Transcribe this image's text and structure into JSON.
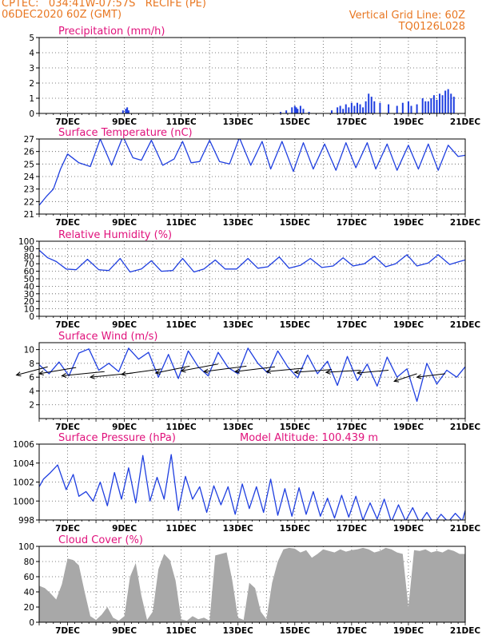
{
  "header": {
    "line1": "CPTEC:   034:41W-07:57S   RECIFE (PE)",
    "line2": "06DEC2020 60Z (GMT)",
    "right1": "Vertical Grid Line: 60Z",
    "right2": "TQ0126L028"
  },
  "colors": {
    "header": "#e87722",
    "title": "#e0127c",
    "series": "#1f3fe0",
    "wind_arrow": "#000000",
    "cloud": "#a8a8a8"
  },
  "x_axis": {
    "domain": [
      0,
      15
    ],
    "labels": [
      "7DEC",
      "9DEC",
      "11DEC",
      "13DEC",
      "15DEC",
      "17DEC",
      "19DEC",
      "21DEC"
    ],
    "label_positions": [
      1,
      3,
      5,
      7,
      9,
      11,
      13,
      15
    ]
  },
  "chart_data": [
    {
      "id": "precip",
      "type": "bar",
      "title": "Precipitation (mm/h)",
      "ylim": [
        0,
        5
      ],
      "yticks": [
        0,
        1,
        2,
        3,
        4,
        5
      ],
      "x": [
        2.95,
        3.05,
        3.1,
        3.15,
        8.5,
        8.7,
        8.9,
        9.0,
        9.05,
        9.1,
        9.2,
        9.3,
        9.5,
        10.3,
        10.5,
        10.6,
        10.7,
        10.8,
        10.9,
        11.0,
        11.1,
        11.2,
        11.3,
        11.4,
        11.5,
        11.6,
        11.7,
        11.8,
        12.0,
        12.3,
        12.6,
        12.8,
        13.0,
        13.1,
        13.3,
        13.5,
        13.6,
        13.7,
        13.8,
        13.9,
        14.0,
        14.1,
        14.2,
        14.3,
        14.4,
        14.5,
        14.6
      ],
      "values": [
        0.2,
        0.3,
        0.4,
        0.2,
        0.1,
        0.2,
        0.4,
        0.5,
        0.4,
        0.3,
        0.5,
        0.3,
        0.1,
        0.2,
        0.4,
        0.5,
        0.3,
        0.6,
        0.4,
        0.7,
        0.5,
        0.7,
        0.6,
        0.4,
        0.8,
        1.3,
        1.1,
        0.8,
        0.7,
        0.6,
        0.5,
        0.7,
        0.8,
        0.5,
        0.6,
        1.0,
        0.8,
        0.8,
        1.0,
        1.2,
        0.9,
        1.3,
        1.2,
        1.5,
        1.6,
        1.3,
        1.1
      ]
    },
    {
      "id": "temp",
      "type": "line",
      "title": "Surface Temperature (nC)",
      "ylim": [
        21,
        27
      ],
      "yticks": [
        21,
        22,
        23,
        24,
        25,
        26,
        27
      ],
      "x": [
        0,
        0.25,
        0.5,
        0.75,
        1.0,
        1.4,
        1.8,
        2.15,
        2.55,
        2.95,
        3.3,
        3.6,
        3.95,
        4.35,
        4.75,
        5.05,
        5.35,
        5.65,
        6.0,
        6.35,
        6.7,
        7.05,
        7.45,
        7.85,
        8.15,
        8.55,
        8.95,
        9.3,
        9.65,
        10.05,
        10.45,
        10.8,
        11.15,
        11.55,
        11.85,
        12.25,
        12.6,
        13.0,
        13.35,
        13.7,
        14.05,
        14.4,
        14.75,
        15.0
      ],
      "values": [
        21.7,
        22.4,
        23.0,
        24.6,
        25.8,
        25.1,
        24.8,
        27.0,
        24.9,
        27.2,
        25.5,
        25.3,
        26.9,
        24.9,
        25.4,
        26.8,
        25.1,
        25.2,
        26.9,
        25.2,
        25.0,
        27.1,
        24.9,
        26.8,
        24.6,
        26.8,
        24.4,
        26.7,
        24.6,
        26.6,
        24.5,
        26.7,
        24.7,
        26.7,
        24.6,
        26.6,
        24.5,
        26.5,
        24.6,
        26.6,
        24.5,
        26.5,
        25.6,
        25.7
      ]
    },
    {
      "id": "rh",
      "type": "line",
      "title": "Relative Humidity (%)",
      "ylim": [
        0,
        100
      ],
      "yticks": [
        0,
        10,
        20,
        30,
        40,
        50,
        60,
        70,
        80,
        90,
        100
      ],
      "x": [
        0,
        0.3,
        0.6,
        0.95,
        1.3,
        1.7,
        2.1,
        2.45,
        2.85,
        3.2,
        3.6,
        3.95,
        4.3,
        4.7,
        5.05,
        5.45,
        5.8,
        6.2,
        6.55,
        6.95,
        7.35,
        7.7,
        8.05,
        8.45,
        8.8,
        9.2,
        9.55,
        9.95,
        10.35,
        10.7,
        11.05,
        11.45,
        11.8,
        12.2,
        12.55,
        12.95,
        13.3,
        13.7,
        14.05,
        14.45,
        14.8,
        15.0
      ],
      "values": [
        88,
        78,
        73,
        63,
        62,
        76,
        62,
        61,
        77,
        59,
        63,
        74,
        60,
        61,
        77,
        59,
        63,
        75,
        63,
        63,
        77,
        64,
        66,
        79,
        64,
        68,
        77,
        65,
        67,
        78,
        67,
        70,
        80,
        66,
        70,
        82,
        67,
        71,
        82,
        69,
        73,
        75
      ]
    },
    {
      "id": "wind",
      "type": "line",
      "title": "Surface Wind (m/s)",
      "ylim": [
        0,
        11
      ],
      "yticks": [
        2,
        4,
        6,
        8,
        10
      ],
      "x": [
        0,
        0.35,
        0.7,
        1.05,
        1.4,
        1.75,
        2.1,
        2.45,
        2.8,
        3.15,
        3.5,
        3.85,
        4.2,
        4.55,
        4.9,
        5.25,
        5.6,
        5.95,
        6.3,
        6.65,
        7.0,
        7.35,
        7.7,
        8.05,
        8.4,
        8.75,
        9.1,
        9.45,
        9.8,
        10.15,
        10.5,
        10.85,
        11.2,
        11.55,
        11.9,
        12.25,
        12.6,
        12.95,
        13.3,
        13.65,
        14.0,
        14.35,
        14.7,
        15.0
      ],
      "values": [
        7.8,
        6.5,
        8.2,
        6.2,
        9.5,
        10.1,
        7.0,
        8.0,
        6.8,
        10.2,
        8.6,
        9.6,
        6.0,
        9.3,
        5.8,
        9.8,
        7.5,
        6.2,
        9.6,
        7.4,
        6.5,
        10.2,
        8.0,
        6.6,
        9.8,
        7.5,
        5.9,
        9.2,
        6.5,
        8.3,
        4.8,
        9.0,
        5.5,
        7.9,
        4.7,
        8.9,
        6.0,
        7.2,
        2.5,
        8.0,
        5.0,
        7.0,
        6.0,
        7.5
      ],
      "arrows": {
        "x": [
          0.3,
          1.3,
          2.3,
          3.3,
          4.3,
          5.3,
          6.3,
          7.3,
          8.3,
          9.3,
          10.3,
          11.3,
          12.3,
          13.3,
          14.3
        ],
        "y": [
          7.5,
          7.4,
          6.8,
          6.6,
          7.2,
          7.6,
          7.9,
          7.6,
          7.5,
          7.3,
          7.1,
          7.0,
          7.0,
          6.5,
          6.5
        ],
        "dx": [
          -1.1,
          -1.3,
          -1.5,
          -1.5,
          -1.4,
          -1.2,
          -1.3,
          -1.5,
          -1.4,
          -1.3,
          -1.3,
          -1.2,
          -1.1,
          -0.8,
          -1.0
        ],
        "dy": [
          -1.2,
          -0.9,
          -0.6,
          -0.6,
          -0.8,
          -1.0,
          -1.0,
          -0.8,
          -0.7,
          -0.5,
          -0.4,
          -0.3,
          -0.4,
          -1.1,
          -0.5
        ]
      }
    },
    {
      "id": "pres",
      "type": "line",
      "title": "Surface Pressure (hPa)",
      "extra_label": "Model Altitude: 100.439  m",
      "ylim": [
        998,
        1006
      ],
      "yticks": [
        998,
        1000,
        1002,
        1004,
        1006
      ],
      "x": [
        0,
        0.15,
        0.4,
        0.65,
        0.95,
        1.2,
        1.4,
        1.65,
        1.9,
        2.15,
        2.4,
        2.65,
        2.9,
        3.15,
        3.4,
        3.65,
        3.9,
        4.15,
        4.4,
        4.65,
        4.9,
        5.15,
        5.4,
        5.65,
        5.9,
        6.15,
        6.4,
        6.65,
        6.9,
        7.15,
        7.4,
        7.65,
        7.9,
        8.15,
        8.4,
        8.65,
        8.9,
        9.15,
        9.4,
        9.65,
        9.9,
        10.15,
        10.4,
        10.65,
        10.9,
        11.15,
        11.4,
        11.65,
        11.9,
        12.15,
        12.4,
        12.65,
        12.9,
        13.15,
        13.4,
        13.65,
        13.9,
        14.15,
        14.4,
        14.65,
        14.9,
        15.0
      ],
      "values": [
        1001.5,
        1002.3,
        1003.0,
        1003.8,
        1001.2,
        1002.8,
        1000.5,
        1001.0,
        1000.0,
        1002.0,
        999.5,
        1003.0,
        1000.2,
        1003.5,
        999.8,
        1004.8,
        1000.0,
        1002.5,
        1000.2,
        1004.9,
        999.0,
        1002.6,
        1000.2,
        1001.5,
        998.8,
        1001.6,
        999.6,
        1001.5,
        998.6,
        1001.8,
        999.2,
        1001.5,
        998.8,
        1002.3,
        998.5,
        1001.3,
        998.4,
        1001.4,
        998.6,
        1001.0,
        998.4,
        1000.3,
        998.2,
        1000.6,
        998.3,
        1000.5,
        998.0,
        999.8,
        998.1,
        1000.2,
        997.8,
        999.6,
        997.9,
        999.3,
        997.7,
        998.8,
        997.6,
        998.6,
        997.8,
        998.7,
        997.9,
        999.0
      ]
    },
    {
      "id": "cloud",
      "type": "area",
      "title": "Cloud Cover (%)",
      "ylim": [
        0,
        100
      ],
      "yticks": [
        0,
        20,
        40,
        60,
        80,
        100
      ],
      "x": [
        0,
        0.2,
        0.4,
        0.6,
        0.8,
        1.0,
        1.2,
        1.4,
        1.6,
        1.8,
        2.0,
        2.2,
        2.4,
        2.6,
        2.8,
        3.0,
        3.2,
        3.4,
        3.6,
        3.8,
        4.0,
        4.2,
        4.4,
        4.6,
        4.8,
        5.0,
        5.2,
        5.4,
        5.6,
        5.8,
        6.0,
        6.2,
        6.4,
        6.6,
        6.8,
        7.0,
        7.2,
        7.4,
        7.6,
        7.8,
        8.0,
        8.2,
        8.4,
        8.6,
        8.8,
        9.0,
        9.2,
        9.4,
        9.6,
        9.8,
        10.0,
        10.2,
        10.4,
        10.6,
        10.8,
        11.0,
        11.2,
        11.4,
        11.6,
        11.8,
        12.0,
        12.2,
        12.4,
        12.6,
        12.8,
        13.0,
        13.2,
        13.4,
        13.6,
        13.8,
        14.0,
        14.2,
        14.4,
        14.6,
        14.8,
        15.0
      ],
      "values": [
        48,
        45,
        38,
        30,
        50,
        84,
        82,
        75,
        40,
        8,
        3,
        10,
        20,
        6,
        2,
        8,
        60,
        78,
        35,
        3,
        14,
        70,
        90,
        82,
        55,
        4,
        2,
        8,
        4,
        6,
        2,
        88,
        90,
        92,
        55,
        6,
        3,
        52,
        45,
        14,
        4,
        52,
        80,
        96,
        98,
        97,
        92,
        95,
        85,
        90,
        96,
        94,
        92,
        96,
        93,
        95,
        96,
        98,
        96,
        92,
        94,
        98,
        96,
        92,
        90,
        20,
        95,
        94,
        96,
        92,
        94,
        92,
        96,
        94,
        90,
        90
      ]
    }
  ]
}
